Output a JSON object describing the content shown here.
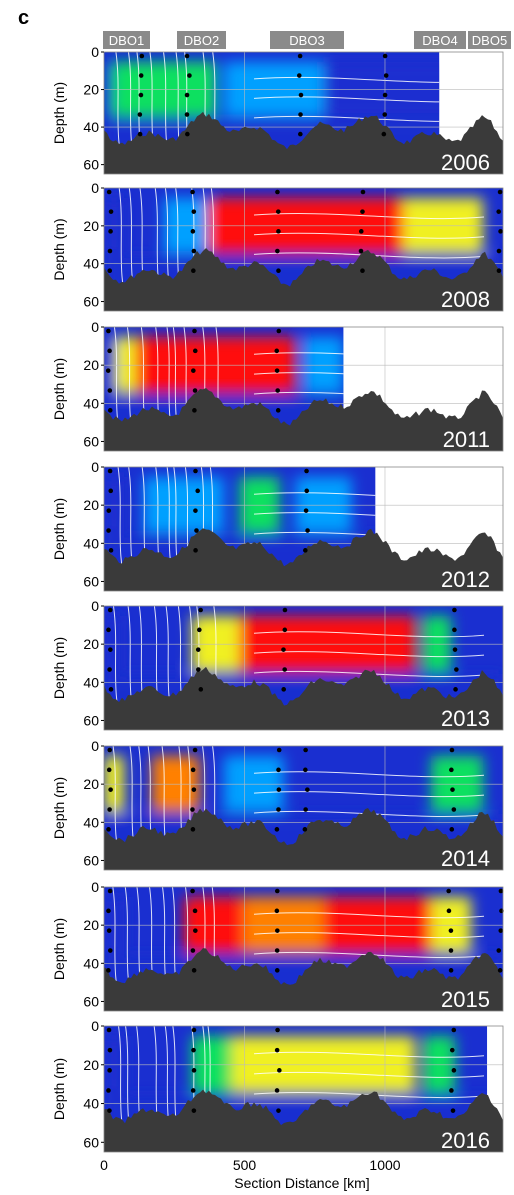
{
  "panel_label": "c",
  "station_labels": [
    "DBO1",
    "DBO2",
    "DBO3",
    "DBO4",
    "DBO5"
  ],
  "chart_data": {
    "type": "heatmap",
    "panels": [
      {
        "year": "2006"
      },
      {
        "year": "2008"
      },
      {
        "year": "2011"
      },
      {
        "year": "2012"
      },
      {
        "year": "2013"
      },
      {
        "year": "2014"
      },
      {
        "year": "2015"
      },
      {
        "year": "2016"
      }
    ],
    "ylabel": "Depth (m)",
    "xlabel": "Section Distance [km]",
    "yticks": [
      0,
      20,
      40,
      60
    ],
    "xticks": [
      0,
      500,
      1000
    ],
    "xlim": [
      0,
      1420
    ],
    "ylim": [
      0,
      65
    ],
    "colormap_colors": [
      "#1a2fd0",
      "#00a0ff",
      "#10e060",
      "#f0f020",
      "#ff8000",
      "#ff1010"
    ]
  }
}
